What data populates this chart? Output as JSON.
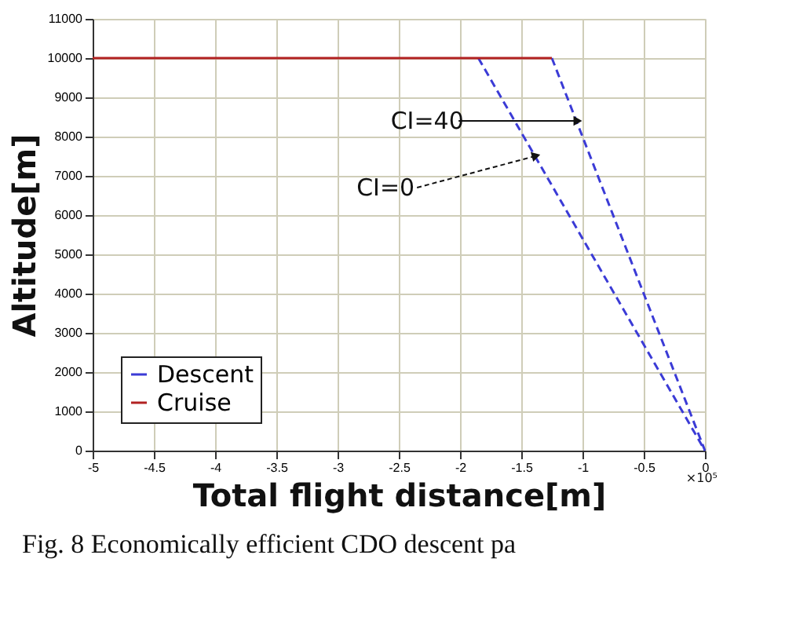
{
  "chart_data": {
    "type": "line",
    "xlabel": "Total flight distance[m]",
    "ylabel": "Altitude[m]",
    "series": [
      {
        "name": "Descent",
        "color": "#3b3bd6",
        "x": [
          -1.85,
          0
        ],
        "values": [
          10000,
          0
        ],
        "line_style": "dashed"
      },
      {
        "color": "#3b3bd6",
        "x": [
          -1.25,
          0
        ],
        "values": [
          10000,
          0
        ],
        "line_style": "dashed"
      },
      {
        "name": "Cruise",
        "color": "#b22222",
        "x": [
          -5,
          -1.25
        ],
        "values": [
          10000,
          10000
        ],
        "line_style": "solid"
      }
    ],
    "xlim": [
      -5,
      0
    ],
    "xticks": [
      -5,
      -4.5,
      -4,
      -3.5,
      -3,
      -2.5,
      -2,
      -1.5,
      -1,
      -0.5,
      0
    ],
    "ylim": [
      0,
      11000
    ],
    "yticks": [
      0,
      1000,
      2000,
      3000,
      4000,
      5000,
      6000,
      7000,
      8000,
      9000,
      10000,
      11000
    ],
    "grid": true,
    "legend": "bottom left",
    "annotations": [
      {
        "text": "CI=40",
        "x": -1.05,
        "y": 8400
      },
      {
        "text": "CI=0",
        "x": -1.39,
        "y": 7500
      },
      "×10⁵",
      "Fig. 8    Economically efficient CDO descent pa"
    ]
  }
}
